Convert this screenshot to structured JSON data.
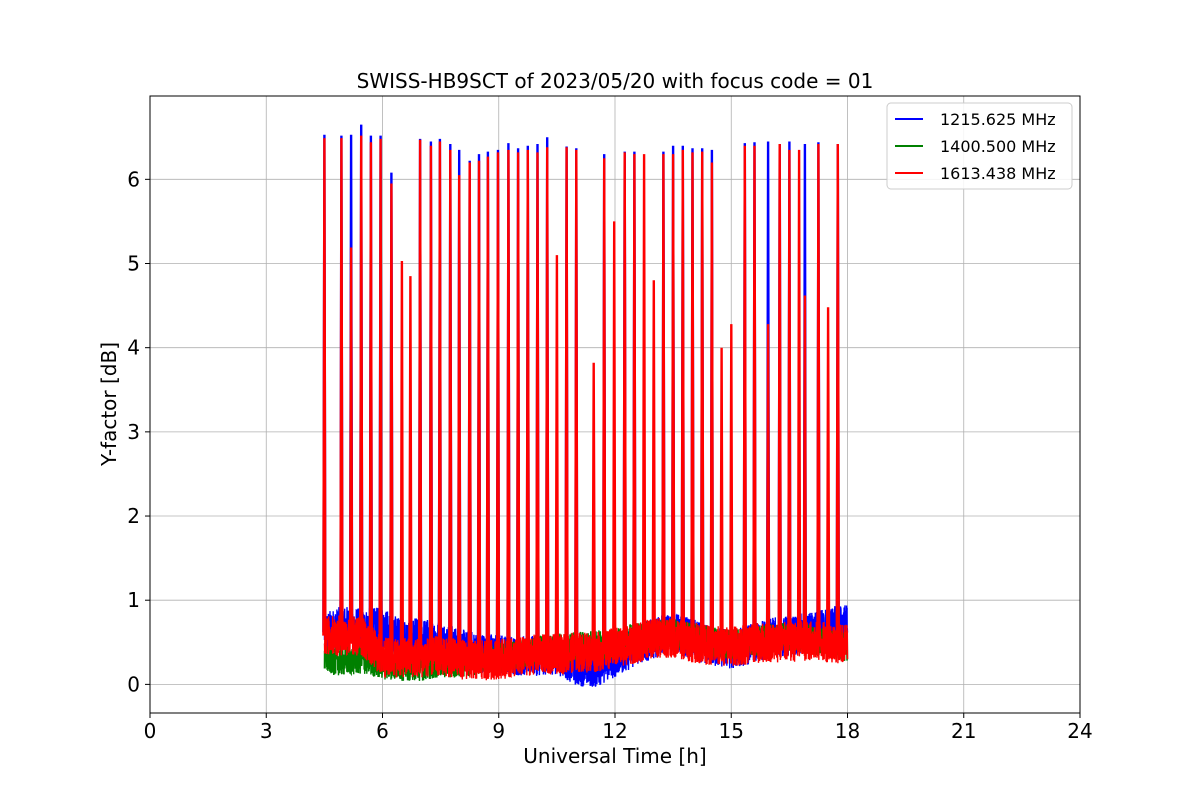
{
  "chart_data": {
    "type": "line",
    "title": "SWISS-HB9SCT of 2023/05/20 with focus code = 01",
    "xlabel": "Universal Time [h]",
    "ylabel": "Y-factor [dB]",
    "xlim": [
      0,
      24
    ],
    "ylim": [
      -0.34,
      6.99
    ],
    "xticks": [
      0,
      3,
      6,
      9,
      12,
      15,
      18,
      21,
      24
    ],
    "xtick_labels": [
      "0",
      "3",
      "6",
      "9",
      "12",
      "15",
      "18",
      "21",
      "24"
    ],
    "yticks": [
      0,
      1,
      2,
      3,
      4,
      5,
      6
    ],
    "ytick_labels": [
      "0",
      "1",
      "2",
      "3",
      "4",
      "5",
      "6"
    ],
    "grid": true,
    "legend_position": "top-right",
    "series": [
      {
        "name": "1215.625 MHz",
        "color": "#0000ff",
        "x": [
          4.5,
          5.0,
          5.5,
          6.0,
          6.5,
          7.0,
          7.5,
          8.0,
          8.5,
          9.0,
          9.5,
          10.0,
          10.5,
          11.0,
          11.5,
          12.0,
          12.5,
          13.0,
          13.5,
          14.0,
          14.5,
          15.0,
          15.5,
          16.0,
          16.5,
          17.0,
          17.5,
          18.0
        ],
        "y": [
          0.62,
          0.7,
          0.66,
          0.68,
          0.54,
          0.55,
          0.52,
          0.42,
          0.38,
          0.36,
          0.34,
          0.34,
          0.36,
          0.22,
          0.2,
          0.32,
          0.45,
          0.55,
          0.62,
          0.54,
          0.45,
          0.42,
          0.48,
          0.55,
          0.58,
          0.62,
          0.68,
          0.72
        ],
        "peaks_x": [
          4.5,
          4.94,
          5.19,
          5.45,
          5.7,
          5.95,
          6.23,
          6.97,
          7.25,
          7.48,
          7.75,
          7.98,
          8.25,
          8.49,
          8.72,
          8.98,
          9.25,
          9.5,
          9.75,
          10.0,
          10.25,
          10.75,
          11.0,
          11.72,
          12.25,
          12.5,
          13.25,
          13.5,
          13.75,
          14.0,
          14.25,
          14.5,
          15.35,
          15.6,
          15.95,
          16.25,
          16.5,
          16.9,
          17.25,
          17.75
        ],
        "peaks_y": [
          6.53,
          6.52,
          6.53,
          6.65,
          6.52,
          6.52,
          6.08,
          6.48,
          6.45,
          6.48,
          6.42,
          6.35,
          6.22,
          6.3,
          6.33,
          6.35,
          6.43,
          6.37,
          6.4,
          6.42,
          6.5,
          6.39,
          6.37,
          6.3,
          6.33,
          6.33,
          6.33,
          6.4,
          6.4,
          6.37,
          6.37,
          6.35,
          6.43,
          6.44,
          6.45,
          6.42,
          6.45,
          6.42,
          6.44,
          6.42
        ]
      },
      {
        "name": "1400.500 MHz",
        "color": "#008000",
        "x": [
          4.5,
          5.0,
          5.5,
          6.0,
          6.5,
          7.0,
          7.5,
          8.0,
          8.5,
          9.0,
          9.5,
          10.0,
          10.5,
          11.0,
          11.5,
          12.0,
          12.5,
          13.0,
          13.5,
          14.0,
          14.5,
          15.0,
          15.5,
          16.0,
          16.5,
          17.0,
          17.5,
          18.0
        ],
        "y": [
          0.3,
          0.28,
          0.3,
          0.24,
          0.22,
          0.22,
          0.26,
          0.26,
          0.3,
          0.32,
          0.36,
          0.4,
          0.42,
          0.44,
          0.46,
          0.48,
          0.55,
          0.58,
          0.6,
          0.56,
          0.5,
          0.48,
          0.5,
          0.54,
          0.56,
          0.54,
          0.5,
          0.45
        ],
        "spike_x": [
          15.35
        ],
        "spike_y": [
          1.45
        ]
      },
      {
        "name": "1613.438 MHz",
        "color": "#ff0000",
        "x": [
          4.5,
          5.0,
          5.5,
          6.0,
          6.5,
          7.0,
          7.5,
          8.0,
          8.5,
          9.0,
          9.5,
          10.0,
          10.5,
          11.0,
          11.5,
          12.0,
          12.5,
          13.0,
          13.5,
          14.0,
          14.5,
          15.0,
          15.5,
          16.0,
          16.5,
          17.0,
          17.5,
          18.0
        ],
        "y": [
          0.58,
          0.58,
          0.56,
          0.32,
          0.32,
          0.32,
          0.34,
          0.3,
          0.28,
          0.3,
          0.32,
          0.36,
          0.36,
          0.38,
          0.38,
          0.44,
          0.48,
          0.55,
          0.55,
          0.5,
          0.46,
          0.45,
          0.48,
          0.5,
          0.5,
          0.52,
          0.5,
          0.48
        ],
        "peaks_x": [
          4.5,
          4.94,
          5.19,
          5.45,
          5.7,
          5.95,
          6.23,
          6.5,
          6.72,
          6.97,
          7.25,
          7.48,
          7.75,
          7.98,
          8.25,
          8.49,
          8.72,
          8.98,
          9.25,
          9.5,
          9.75,
          10.0,
          10.25,
          10.5,
          10.75,
          11.0,
          11.45,
          11.72,
          11.98,
          12.25,
          12.5,
          12.75,
          13.0,
          13.25,
          13.5,
          13.75,
          14.0,
          14.25,
          14.5,
          14.75,
          15.0,
          15.35,
          15.6,
          15.95,
          16.25,
          16.5,
          16.75,
          16.9,
          17.25,
          17.5,
          17.75
        ],
        "peaks_y": [
          6.49,
          6.49,
          5.19,
          6.52,
          6.44,
          6.48,
          5.95,
          5.03,
          4.85,
          6.47,
          6.4,
          6.45,
          6.35,
          6.05,
          6.2,
          6.22,
          6.27,
          6.32,
          6.35,
          6.32,
          6.35,
          6.32,
          6.38,
          5.1,
          6.38,
          6.35,
          3.82,
          6.25,
          5.5,
          6.32,
          6.3,
          6.3,
          4.8,
          6.3,
          6.3,
          6.35,
          6.32,
          6.33,
          6.2,
          4.0,
          4.28,
          6.4,
          6.4,
          4.28,
          6.42,
          6.35,
          6.35,
          4.62,
          6.42,
          4.48,
          6.42
        ]
      }
    ]
  }
}
